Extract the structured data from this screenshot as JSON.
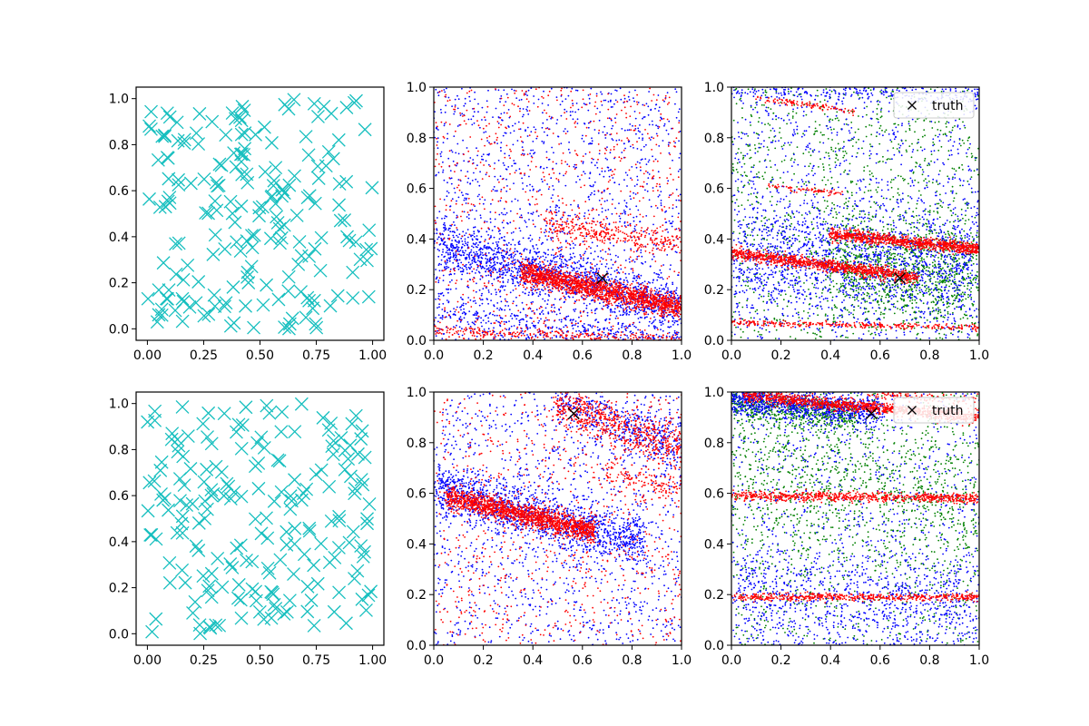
{
  "chart_data": [
    {
      "type": "scatter",
      "row": 0,
      "col": 0,
      "xlim": [
        -0.05,
        1.05
      ],
      "ylim": [
        -0.05,
        1.05
      ],
      "xticks": [
        "0.00",
        "0.25",
        "0.50",
        "0.75",
        "1.00"
      ],
      "yticks": [
        "0.0",
        "0.2",
        "0.4",
        "0.6",
        "0.8",
        "1.0"
      ],
      "series": [
        {
          "marker": "x",
          "color": "#17bfbf",
          "marker_size": "large",
          "distribution": "uniform",
          "count": 200,
          "seed": 11
        }
      ],
      "legend": null
    },
    {
      "type": "scatter",
      "row": 0,
      "col": 1,
      "xlim": [
        0,
        1
      ],
      "ylim": [
        0,
        1
      ],
      "xticks": [
        "0.0",
        "0.2",
        "0.4",
        "0.6",
        "0.8",
        "1.0"
      ],
      "yticks": [
        "0.0",
        "0.2",
        "0.4",
        "0.6",
        "0.8",
        "1.0"
      ],
      "series": [
        {
          "color": "#0000ff",
          "marker": "dot",
          "count": 3200,
          "seed": 21,
          "bands": [
            {
              "x0": 0.0,
              "y0": 0.38,
              "x1": 1.0,
              "y1": 0.13,
              "spread": 0.05,
              "weight": 0.45
            },
            {
              "x0": 0.0,
              "y0": 0.12,
              "x1": 1.0,
              "y1": 0.0,
              "spread": 0.04,
              "weight": 0.12
            }
          ],
          "uniform_weight": 0.43
        },
        {
          "color": "#ff0000",
          "marker": "dot",
          "count": 3000,
          "seed": 22,
          "bands": [
            {
              "x0": 0.35,
              "y0": 0.27,
              "x1": 1.0,
              "y1": 0.13,
              "spread": 0.022,
              "weight": 0.55
            },
            {
              "x0": 0.45,
              "y0": 0.46,
              "x1": 1.0,
              "y1": 0.38,
              "spread": 0.025,
              "weight": 0.1
            },
            {
              "x0": 0.0,
              "y0": 0.04,
              "x1": 1.0,
              "y1": 0.0,
              "spread": 0.012,
              "weight": 0.1
            }
          ],
          "uniform_weight": 0.25
        }
      ],
      "truth": {
        "x": 0.68,
        "y": 0.245
      },
      "legend": null
    },
    {
      "type": "scatter",
      "row": 0,
      "col": 2,
      "xlim": [
        0,
        1
      ],
      "ylim": [
        0,
        1
      ],
      "xticks": [
        "0.0",
        "0.2",
        "0.4",
        "0.6",
        "0.8",
        "1.0"
      ],
      "yticks": [
        "0.0",
        "0.2",
        "0.4",
        "0.6",
        "0.8",
        "1.0"
      ],
      "series": [
        {
          "color": "#008000",
          "marker": "dot",
          "count": 2200,
          "seed": 31,
          "bands": [
            {
              "x0": 0.4,
              "y0": 0.3,
              "x1": 1.0,
              "y1": 0.25,
              "spread": 0.1,
              "weight": 0.45
            }
          ],
          "uniform_weight": 0.55
        },
        {
          "color": "#0000ff",
          "marker": "dot",
          "count": 2600,
          "seed": 32,
          "bands": [
            {
              "x0": 0.0,
              "y0": 0.33,
              "x1": 1.0,
              "y1": 0.3,
              "spread": 0.12,
              "weight": 0.5
            },
            {
              "x0": 0.0,
              "y0": 0.99,
              "x1": 1.0,
              "y1": 0.97,
              "spread": 0.02,
              "weight": 0.1
            }
          ],
          "uniform_weight": 0.4
        },
        {
          "color": "#ff0000",
          "marker": "dot",
          "count": 2400,
          "seed": 33,
          "bands": [
            {
              "x0": 0.0,
              "y0": 0.345,
              "x1": 0.75,
              "y1": 0.25,
              "spread": 0.012,
              "weight": 0.45
            },
            {
              "x0": 0.4,
              "y0": 0.42,
              "x1": 1.0,
              "y1": 0.36,
              "spread": 0.012,
              "weight": 0.35
            },
            {
              "x0": 0.0,
              "y0": 0.07,
              "x1": 1.0,
              "y1": 0.05,
              "spread": 0.006,
              "weight": 0.12
            },
            {
              "x0": 0.1,
              "y0": 0.96,
              "x1": 0.5,
              "y1": 0.9,
              "spread": 0.006,
              "weight": 0.05
            },
            {
              "x0": 0.15,
              "y0": 0.61,
              "x1": 0.45,
              "y1": 0.58,
              "spread": 0.005,
              "weight": 0.03
            }
          ],
          "uniform_weight": 0.0
        }
      ],
      "truth": {
        "x": 0.68,
        "y": 0.245
      },
      "legend": {
        "location": "top-right",
        "entries": [
          "truth"
        ]
      }
    },
    {
      "type": "scatter",
      "row": 1,
      "col": 0,
      "xlim": [
        -0.05,
        1.05
      ],
      "ylim": [
        -0.05,
        1.05
      ],
      "xticks": [
        "0.00",
        "0.25",
        "0.50",
        "0.75",
        "1.00"
      ],
      "yticks": [
        "0.0",
        "0.2",
        "0.4",
        "0.6",
        "0.8",
        "1.0"
      ],
      "series": [
        {
          "marker": "x",
          "color": "#17bfbf",
          "marker_size": "large",
          "distribution": "uniform",
          "count": 200,
          "seed": 41
        }
      ],
      "legend": null
    },
    {
      "type": "scatter",
      "row": 1,
      "col": 1,
      "xlim": [
        0,
        1
      ],
      "ylim": [
        0,
        1
      ],
      "xticks": [
        "0.0",
        "0.2",
        "0.4",
        "0.6",
        "0.8",
        "1.0"
      ],
      "yticks": [
        "0.0",
        "0.2",
        "0.4",
        "0.6",
        "0.8",
        "1.0"
      ],
      "series": [
        {
          "color": "#0000ff",
          "marker": "dot",
          "count": 3000,
          "seed": 51,
          "bands": [
            {
              "x0": 0.0,
              "y0": 0.62,
              "x1": 0.85,
              "y1": 0.4,
              "spread": 0.05,
              "weight": 0.45
            },
            {
              "x0": 0.5,
              "y0": 0.97,
              "x1": 1.0,
              "y1": 0.78,
              "spread": 0.05,
              "weight": 0.15
            }
          ],
          "uniform_weight": 0.4
        },
        {
          "color": "#ff0000",
          "marker": "dot",
          "count": 3000,
          "seed": 52,
          "bands": [
            {
              "x0": 0.05,
              "y0": 0.59,
              "x1": 0.65,
              "y1": 0.45,
              "spread": 0.022,
              "weight": 0.5
            },
            {
              "x0": 0.5,
              "y0": 0.95,
              "x1": 1.0,
              "y1": 0.78,
              "spread": 0.04,
              "weight": 0.2
            },
            {
              "x0": 0.7,
              "y0": 0.68,
              "x1": 1.0,
              "y1": 0.6,
              "spread": 0.03,
              "weight": 0.05
            }
          ],
          "uniform_weight": 0.25
        }
      ],
      "truth": {
        "x": 0.565,
        "y": 0.915
      },
      "legend": null
    },
    {
      "type": "scatter",
      "row": 1,
      "col": 2,
      "xlim": [
        0,
        1
      ],
      "ylim": [
        0,
        1
      ],
      "xticks": [
        "0.0",
        "0.2",
        "0.4",
        "0.6",
        "0.8",
        "1.0"
      ],
      "yticks": [
        "0.0",
        "0.2",
        "0.4",
        "0.6",
        "0.8",
        "1.0"
      ],
      "series": [
        {
          "color": "#008000",
          "marker": "dot",
          "count": 2200,
          "seed": 61,
          "bands": [
            {
              "x0": 0.0,
              "y0": 0.95,
              "x1": 0.5,
              "y1": 0.9,
              "spread": 0.03,
              "weight": 0.25
            },
            {
              "x0": 0.0,
              "y0": 0.7,
              "x1": 1.0,
              "y1": 0.55,
              "spread": 0.15,
              "weight": 0.35
            }
          ],
          "uniform_weight": 0.4
        },
        {
          "color": "#0000ff",
          "marker": "dot",
          "count": 2600,
          "seed": 62,
          "bands": [
            {
              "x0": 0.0,
              "y0": 0.97,
              "x1": 0.6,
              "y1": 0.92,
              "spread": 0.03,
              "weight": 0.35
            },
            {
              "x0": 0.0,
              "y0": 0.2,
              "x1": 1.0,
              "y1": 0.15,
              "spread": 0.1,
              "weight": 0.3
            }
          ],
          "uniform_weight": 0.35
        },
        {
          "color": "#ff0000",
          "marker": "dot",
          "count": 2400,
          "seed": 63,
          "bands": [
            {
              "x0": 0.05,
              "y0": 0.985,
              "x1": 1.0,
              "y1": 0.9,
              "spread": 0.012,
              "weight": 0.45
            },
            {
              "x0": 0.0,
              "y0": 0.59,
              "x1": 1.0,
              "y1": 0.58,
              "spread": 0.01,
              "weight": 0.3
            },
            {
              "x0": 0.0,
              "y0": 0.19,
              "x1": 1.0,
              "y1": 0.19,
              "spread": 0.007,
              "weight": 0.2
            },
            {
              "x0": 0.55,
              "y0": 0.99,
              "x1": 1.0,
              "y1": 0.96,
              "spread": 0.01,
              "weight": 0.05
            }
          ],
          "uniform_weight": 0.0
        }
      ],
      "truth": {
        "x": 0.565,
        "y": 0.915
      },
      "legend": {
        "location": "top-right",
        "entries": [
          "truth"
        ]
      }
    }
  ]
}
